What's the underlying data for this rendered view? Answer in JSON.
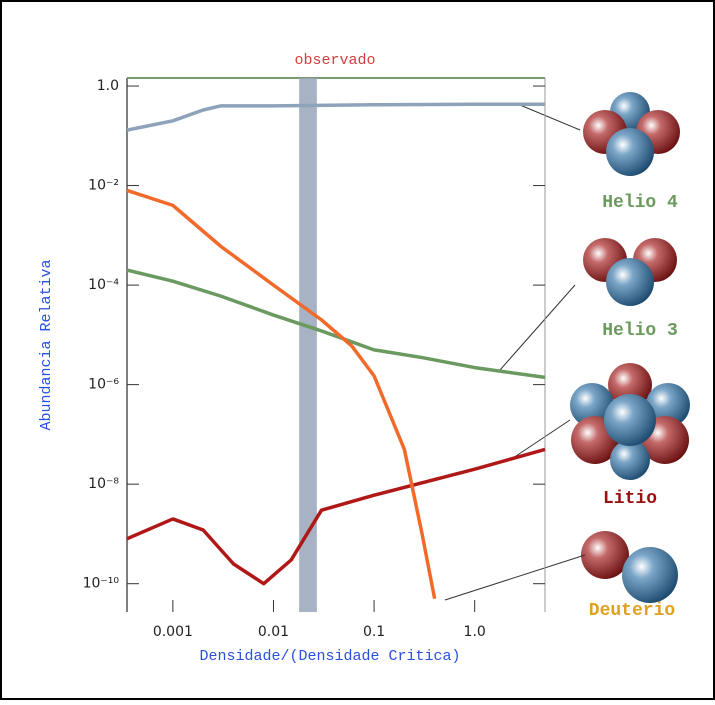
{
  "chart_data": {
    "type": "line",
    "xscale": "log",
    "yscale": "log",
    "grid": false,
    "xlabel": "Densidade/(Densidade Critica)",
    "ylabel": "Abundancia Relativa",
    "annotation": "observado",
    "observed_band": [
      0.018,
      0.027
    ],
    "xlim": [
      0.00035,
      5
    ],
    "ylim": [
      2.7e-11,
      1.45
    ],
    "xticks": [
      0.001,
      0.01,
      0.1,
      {
        "value": 1,
        "label": "1.0"
      }
    ],
    "yticks": [
      {
        "value": 1,
        "label": "1.0"
      },
      {
        "value": 0.01,
        "label": "10⁻²"
      },
      {
        "value": 0.0001,
        "label": "10⁻⁴"
      },
      {
        "value": 1e-06,
        "label": "10⁻⁶"
      },
      {
        "value": 1e-08,
        "label": "10⁻⁸"
      },
      {
        "value": 1e-10,
        "label": "10⁻¹⁰"
      }
    ],
    "series": [
      {
        "name": "Helio 4",
        "color": "#8ea3ba",
        "label_color": "#6a9a5e",
        "x": [
          0.00035,
          0.001,
          0.002,
          0.003,
          0.01,
          0.1,
          1,
          5
        ],
        "values": [
          0.13,
          0.2,
          0.33,
          0.4,
          0.4,
          0.42,
          0.43,
          0.43
        ]
      },
      {
        "name": "Helio 3",
        "color": "#6a9a60",
        "label_color": "#6a9a5e",
        "x": [
          0.00035,
          0.001,
          0.003,
          0.01,
          0.03,
          0.1,
          0.3,
          1,
          5
        ],
        "values": [
          0.0002,
          0.00012,
          6e-05,
          2.5e-05,
          1.2e-05,
          5e-06,
          3.5e-06,
          2.2e-06,
          1.4e-06
        ]
      },
      {
        "name": "Litio",
        "color": "#b01818",
        "label_color": "#9a1010",
        "x": [
          0.00035,
          0.001,
          0.002,
          0.004,
          0.008,
          0.015,
          0.03,
          0.1,
          1,
          5
        ],
        "values": [
          8e-10,
          2e-09,
          1.2e-09,
          2.5e-10,
          1e-10,
          3e-10,
          3e-09,
          6e-09,
          2e-08,
          5e-08
        ]
      },
      {
        "name": "Deuterio",
        "color": "#f26a2a",
        "label_color": "#e0a020",
        "x": [
          0.00035,
          0.001,
          0.003,
          0.01,
          0.03,
          0.06,
          0.1,
          0.2,
          0.3,
          0.4
        ],
        "values": [
          0.008,
          0.004,
          0.0006,
          0.0001,
          2e-05,
          6e-06,
          1.5e-06,
          5e-08,
          1e-09,
          5e-11
        ]
      }
    ]
  }
}
